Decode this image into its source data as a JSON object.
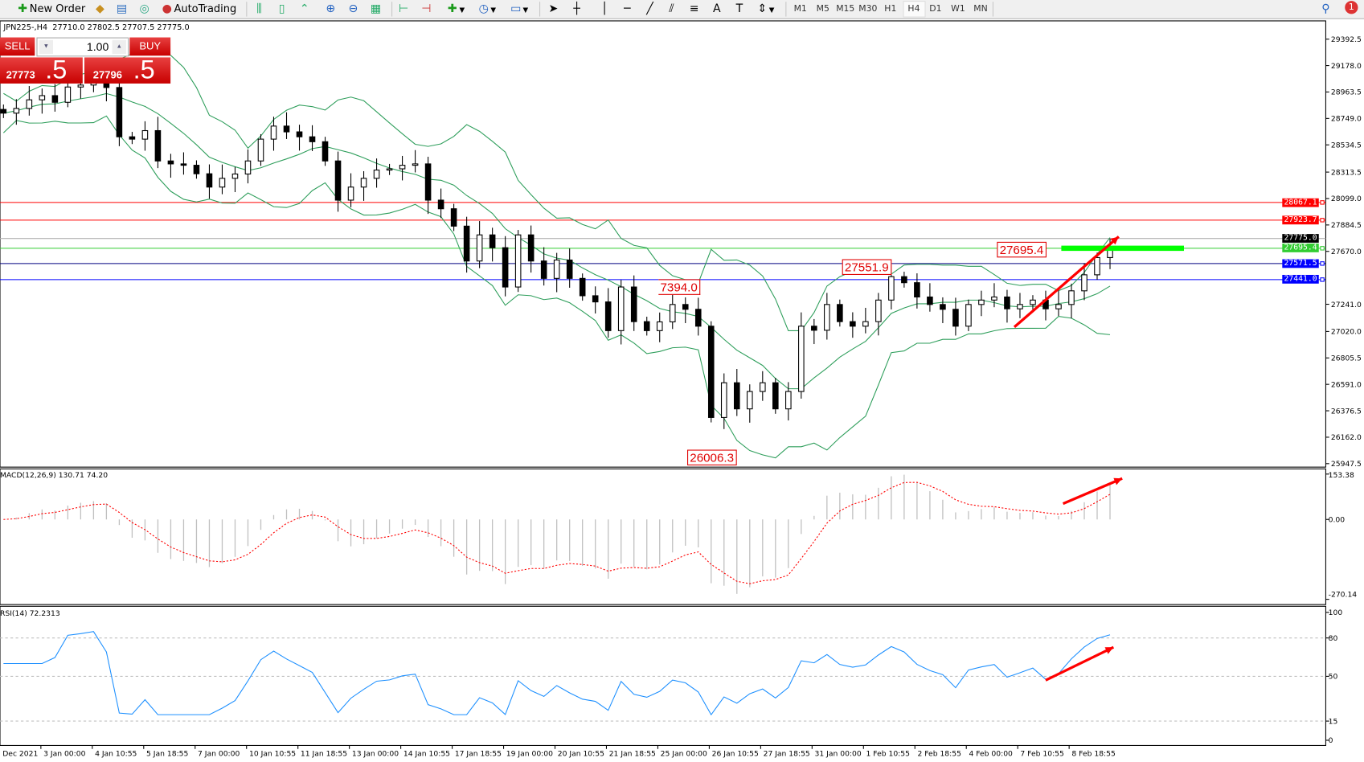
{
  "toolbar": {
    "new_order": "New Order",
    "autotrading": "AutoTrading",
    "timeframes": [
      "M1",
      "M5",
      "M15",
      "M30",
      "H1",
      "H4",
      "D1",
      "W1",
      "MN"
    ],
    "active_timeframe": "H4",
    "notification_count": "1"
  },
  "chart": {
    "symbol_info": "JPN225-,H4  27710.0 27802.5 27707.5 27775.0",
    "trade_panel": {
      "sell_label": "SELL",
      "buy_label": "BUY",
      "lot": "1.00",
      "sell_price_main": "27773",
      "sell_price_big": ".5",
      "buy_price_main": "27796",
      "buy_price_big": ".5"
    },
    "annotations": [
      "27695.4",
      "27551.9",
      "7394.0",
      "26006.3"
    ],
    "levels": [
      {
        "price": "28067.1",
        "color": "#ff0000"
      },
      {
        "price": "27923.7",
        "color": "#ff0000"
      },
      {
        "price": "27775.0",
        "color": "#000000"
      },
      {
        "price": "27695.4",
        "color": "#32cd32"
      },
      {
        "price": "27571.5",
        "color": "#0000ff"
      },
      {
        "price": "27441.0",
        "color": "#0000ff"
      }
    ],
    "macd_label": "MACD(12,26,9) 130.71 74.20",
    "rsi_label": "RSI(14) 72.2313",
    "colors": {
      "bands": "#2e9e5b",
      "macd_signal": "#ff0000",
      "macd_hist": "#c0c0c0",
      "rsi": "#1e90ff",
      "arrow": "#ff0000",
      "green_zone": "#00ff00"
    }
  },
  "chart_data": {
    "type": "candlestick",
    "price_axis_ticks": [
      "29392.5",
      "29178.0",
      "28963.5",
      "28749.0",
      "28534.5",
      "28313.5",
      "28099.0",
      "27884.5",
      "27670.0",
      "27241.0",
      "27020.0",
      "26805.5",
      "26591.0",
      "26376.5",
      "26162.0",
      "25947.5"
    ],
    "price_range": [
      25947.5,
      29392.5
    ],
    "macd_axis_ticks": [
      "153.38",
      "0.00",
      "-270.14"
    ],
    "macd_range": [
      -270.14,
      153.38
    ],
    "rsi_axis_ticks": [
      "100",
      "80",
      "50",
      "15",
      "0"
    ],
    "rsi_levels": [
      80,
      50,
      15
    ],
    "time_labels": [
      "Dec 2021",
      "3 Jan 00:00",
      "4 Jan 10:55",
      "5 Jan 18:55",
      "7 Jan 00:00",
      "10 Jan 10:55",
      "11 Jan 18:55",
      "13 Jan 00:00",
      "14 Jan 10:55",
      "17 Jan 18:55",
      "19 Jan 00:00",
      "20 Jan 10:55",
      "21 Jan 18:55",
      "25 Jan 00:00",
      "26 Jan 10:55",
      "27 Jan 18:55",
      "31 Jan 00:00",
      "1 Feb 10:55",
      "2 Feb 18:55",
      "4 Feb 00:00",
      "7 Feb 10:55",
      "8 Feb 18:55"
    ],
    "closes": [
      28792,
      28830,
      28900,
      28934,
      28880,
      29004,
      29020,
      29040,
      29000,
      28600,
      28581,
      28650,
      28404,
      28380,
      28369,
      28300,
      28192,
      28263,
      28298,
      28404,
      28581,
      28687,
      28640,
      28600,
      28560,
      28404,
      28086,
      28192,
      28263,
      28330,
      28340,
      28369,
      28380,
      28086,
      28016,
      27875,
      27592,
      27804,
      27700,
      27381,
      27804,
      27592,
      27451,
      27600,
      27451,
      27310,
      27260,
      27027,
      27381,
      27100,
      27027,
      27098,
      27239,
      27200,
      27063,
      26322,
      26604,
      26392,
      26533,
      26604,
      26392,
      26533,
      27063,
      27030,
      27239,
      27100,
      27063,
      27100,
      27275,
      27465,
      27416,
      27300,
      27239,
      27200,
      27063,
      27239,
      27275,
      27300,
      27204,
      27239,
      27275,
      27204,
      27239,
      27350,
      27480,
      27620,
      27698
    ]
  }
}
